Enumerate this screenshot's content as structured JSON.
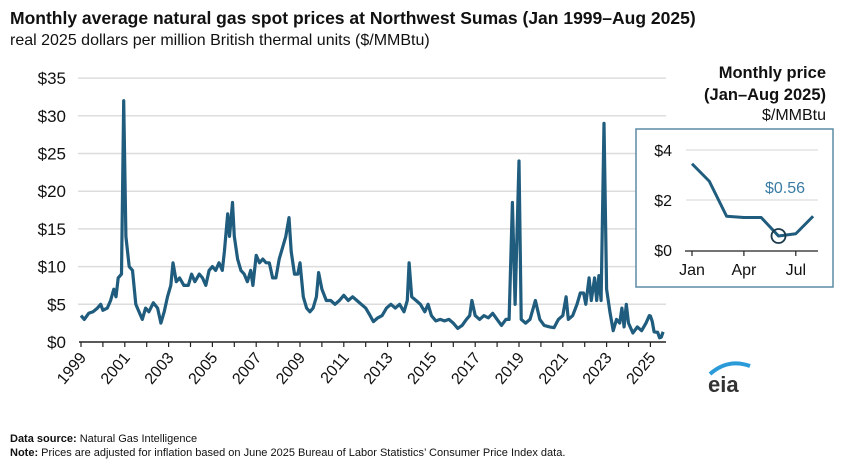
{
  "chart_data": {
    "type": "line",
    "title": "Monthly average natural gas spot prices at Northwest Sumas (Jan 1999–Aug 2025)",
    "subtitle": "real 2025 dollars per million British thermal units ($/MMBtu)",
    "ylim": [
      0,
      35
    ],
    "yticks": [
      "$0",
      "$5",
      "$10",
      "$15",
      "$20",
      "$25",
      "$30",
      "$35"
    ],
    "ytick_values": [
      0,
      5,
      10,
      15,
      20,
      25,
      30,
      35
    ],
    "xticks": [
      "1999",
      "2001",
      "2003",
      "2005",
      "2007",
      "2009",
      "2011",
      "2013",
      "2015",
      "2017",
      "2019",
      "2021",
      "2023",
      "2025"
    ],
    "xlim": [
      1999,
      2025.67
    ],
    "grid": true,
    "series": [
      {
        "name": "Northwest Sumas monthly price",
        "color": "#1f5c7d",
        "points": [
          [
            1999.0,
            3.5
          ],
          [
            1999.15,
            3.0
          ],
          [
            1999.35,
            3.8
          ],
          [
            1999.55,
            4.0
          ],
          [
            1999.75,
            4.5
          ],
          [
            1999.9,
            5.0
          ],
          [
            2000.0,
            4.2
          ],
          [
            2000.2,
            4.5
          ],
          [
            2000.35,
            5.5
          ],
          [
            2000.5,
            7.0
          ],
          [
            2000.6,
            6.0
          ],
          [
            2000.7,
            8.5
          ],
          [
            2000.85,
            9.0
          ],
          [
            2000.95,
            32.0
          ],
          [
            2001.05,
            14.0
          ],
          [
            2001.2,
            10.0
          ],
          [
            2001.35,
            9.5
          ],
          [
            2001.5,
            5.0
          ],
          [
            2001.65,
            4.0
          ],
          [
            2001.8,
            3.0
          ],
          [
            2001.95,
            4.5
          ],
          [
            2002.1,
            4.0
          ],
          [
            2002.3,
            5.2
          ],
          [
            2002.5,
            4.5
          ],
          [
            2002.65,
            2.5
          ],
          [
            2002.8,
            4.0
          ],
          [
            2002.95,
            6.0
          ],
          [
            2003.1,
            7.5
          ],
          [
            2003.2,
            10.5
          ],
          [
            2003.35,
            8.0
          ],
          [
            2003.5,
            8.5
          ],
          [
            2003.7,
            7.5
          ],
          [
            2003.9,
            7.5
          ],
          [
            2004.05,
            9.0
          ],
          [
            2004.2,
            8.0
          ],
          [
            2004.4,
            9.0
          ],
          [
            2004.55,
            8.5
          ],
          [
            2004.7,
            7.5
          ],
          [
            2004.85,
            9.5
          ],
          [
            2005.0,
            10.0
          ],
          [
            2005.15,
            9.5
          ],
          [
            2005.3,
            10.5
          ],
          [
            2005.45,
            9.5
          ],
          [
            2005.55,
            12.0
          ],
          [
            2005.7,
            17.0
          ],
          [
            2005.78,
            14.0
          ],
          [
            2005.92,
            18.5
          ],
          [
            2006.0,
            14.0
          ],
          [
            2006.15,
            11.0
          ],
          [
            2006.3,
            9.5
          ],
          [
            2006.45,
            9.0
          ],
          [
            2006.6,
            8.0
          ],
          [
            2006.75,
            9.5
          ],
          [
            2006.85,
            7.5
          ],
          [
            2007.0,
            11.5
          ],
          [
            2007.15,
            10.5
          ],
          [
            2007.3,
            11.0
          ],
          [
            2007.45,
            10.5
          ],
          [
            2007.6,
            10.5
          ],
          [
            2007.75,
            8.5
          ],
          [
            2007.9,
            8.5
          ],
          [
            2008.05,
            11.0
          ],
          [
            2008.2,
            12.5
          ],
          [
            2008.35,
            14.0
          ],
          [
            2008.5,
            16.5
          ],
          [
            2008.6,
            12.0
          ],
          [
            2008.75,
            9.0
          ],
          [
            2008.9,
            9.0
          ],
          [
            2009.0,
            10.5
          ],
          [
            2009.15,
            6.0
          ],
          [
            2009.3,
            4.5
          ],
          [
            2009.45,
            4.0
          ],
          [
            2009.6,
            4.5
          ],
          [
            2009.75,
            6.0
          ],
          [
            2009.85,
            9.2
          ],
          [
            2010.0,
            7.0
          ],
          [
            2010.2,
            5.5
          ],
          [
            2010.4,
            5.5
          ],
          [
            2010.6,
            5.0
          ],
          [
            2010.8,
            5.5
          ],
          [
            2011.0,
            6.2
          ],
          [
            2011.2,
            5.5
          ],
          [
            2011.4,
            6.0
          ],
          [
            2011.6,
            5.5
          ],
          [
            2011.8,
            5.0
          ],
          [
            2012.0,
            4.5
          ],
          [
            2012.2,
            3.5
          ],
          [
            2012.35,
            2.7
          ],
          [
            2012.55,
            3.2
          ],
          [
            2012.75,
            3.5
          ],
          [
            2012.95,
            4.5
          ],
          [
            2013.15,
            5.0
          ],
          [
            2013.35,
            4.5
          ],
          [
            2013.55,
            5.0
          ],
          [
            2013.75,
            4.0
          ],
          [
            2013.9,
            5.5
          ],
          [
            2013.98,
            10.5
          ],
          [
            2014.1,
            6.0
          ],
          [
            2014.3,
            5.5
          ],
          [
            2014.5,
            5.0
          ],
          [
            2014.7,
            4.0
          ],
          [
            2014.85,
            5.0
          ],
          [
            2015.0,
            3.5
          ],
          [
            2015.2,
            2.8
          ],
          [
            2015.4,
            3.0
          ],
          [
            2015.6,
            2.8
          ],
          [
            2015.8,
            3.0
          ],
          [
            2016.0,
            2.5
          ],
          [
            2016.2,
            1.8
          ],
          [
            2016.4,
            2.2
          ],
          [
            2016.6,
            3.0
          ],
          [
            2016.75,
            3.5
          ],
          [
            2016.85,
            5.5
          ],
          [
            2017.0,
            3.5
          ],
          [
            2017.2,
            3.0
          ],
          [
            2017.4,
            3.5
          ],
          [
            2017.6,
            3.2
          ],
          [
            2017.8,
            3.8
          ],
          [
            2018.0,
            3.0
          ],
          [
            2018.2,
            2.2
          ],
          [
            2018.4,
            3.0
          ],
          [
            2018.55,
            3.0
          ],
          [
            2018.7,
            18.5
          ],
          [
            2018.82,
            5.0
          ],
          [
            2019.0,
            24.0
          ],
          [
            2019.1,
            3.0
          ],
          [
            2019.3,
            2.5
          ],
          [
            2019.5,
            3.0
          ],
          [
            2019.75,
            5.5
          ],
          [
            2019.95,
            3.0
          ],
          [
            2020.15,
            2.2
          ],
          [
            2020.4,
            2.0
          ],
          [
            2020.6,
            1.9
          ],
          [
            2020.8,
            3.0
          ],
          [
            2021.0,
            3.5
          ],
          [
            2021.15,
            6.0
          ],
          [
            2021.25,
            3.0
          ],
          [
            2021.45,
            3.5
          ],
          [
            2021.65,
            5.0
          ],
          [
            2021.8,
            6.5
          ],
          [
            2021.95,
            6.5
          ],
          [
            2022.05,
            5.0
          ],
          [
            2022.2,
            8.5
          ],
          [
            2022.3,
            5.5
          ],
          [
            2022.45,
            8.5
          ],
          [
            2022.55,
            5.5
          ],
          [
            2022.65,
            8.8
          ],
          [
            2022.75,
            5.5
          ],
          [
            2022.88,
            29.0
          ],
          [
            2023.0,
            7.0
          ],
          [
            2023.15,
            4.0
          ],
          [
            2023.3,
            1.5
          ],
          [
            2023.45,
            3.0
          ],
          [
            2023.6,
            2.5
          ],
          [
            2023.7,
            4.5
          ],
          [
            2023.8,
            2.0
          ],
          [
            2023.9,
            5.0
          ],
          [
            2024.0,
            2.5
          ],
          [
            2024.2,
            1.2
          ],
          [
            2024.4,
            2.0
          ],
          [
            2024.6,
            1.5
          ],
          [
            2024.8,
            2.5
          ],
          [
            2024.95,
            3.5
          ],
          [
            2025.0,
            3.45
          ],
          [
            2025.08,
            2.75
          ],
          [
            2025.17,
            1.35
          ],
          [
            2025.25,
            1.3
          ],
          [
            2025.33,
            1.3
          ],
          [
            2025.42,
            0.56
          ],
          [
            2025.5,
            0.65
          ],
          [
            2025.58,
            1.35
          ]
        ]
      }
    ]
  },
  "inset": {
    "title_line1": "Monthly price",
    "title_line2": "(Jan–Aug 2025)",
    "unit": "$/MMBtu",
    "yticks": [
      "$0",
      "$2",
      "$4"
    ],
    "ytick_values": [
      0,
      2,
      4
    ],
    "xticks": [
      "Jan",
      "Apr",
      "Jul"
    ],
    "xtick_months": [
      1,
      4,
      7
    ],
    "months": [
      1,
      2,
      3,
      4,
      5,
      6,
      7,
      8
    ],
    "values": [
      3.45,
      2.75,
      1.35,
      1.3,
      1.3,
      0.56,
      0.65,
      1.35
    ],
    "highlight_month": 6,
    "highlight_label": "$0.56",
    "ylim": [
      0,
      4
    ]
  },
  "footer": {
    "source_label": "Data source:",
    "source": "Natural Gas Intelligence",
    "note_label": "Note:",
    "note": "Prices are adjusted for inflation based on June 2025 Bureau of Labor Statistics’ Consumer Price Index data."
  },
  "logo": "eia",
  "colors": {
    "line": "#1f5c7d",
    "grid": "#dddddd",
    "inset_border": "#5b8aa6",
    "label": "#3a7ca5"
  }
}
